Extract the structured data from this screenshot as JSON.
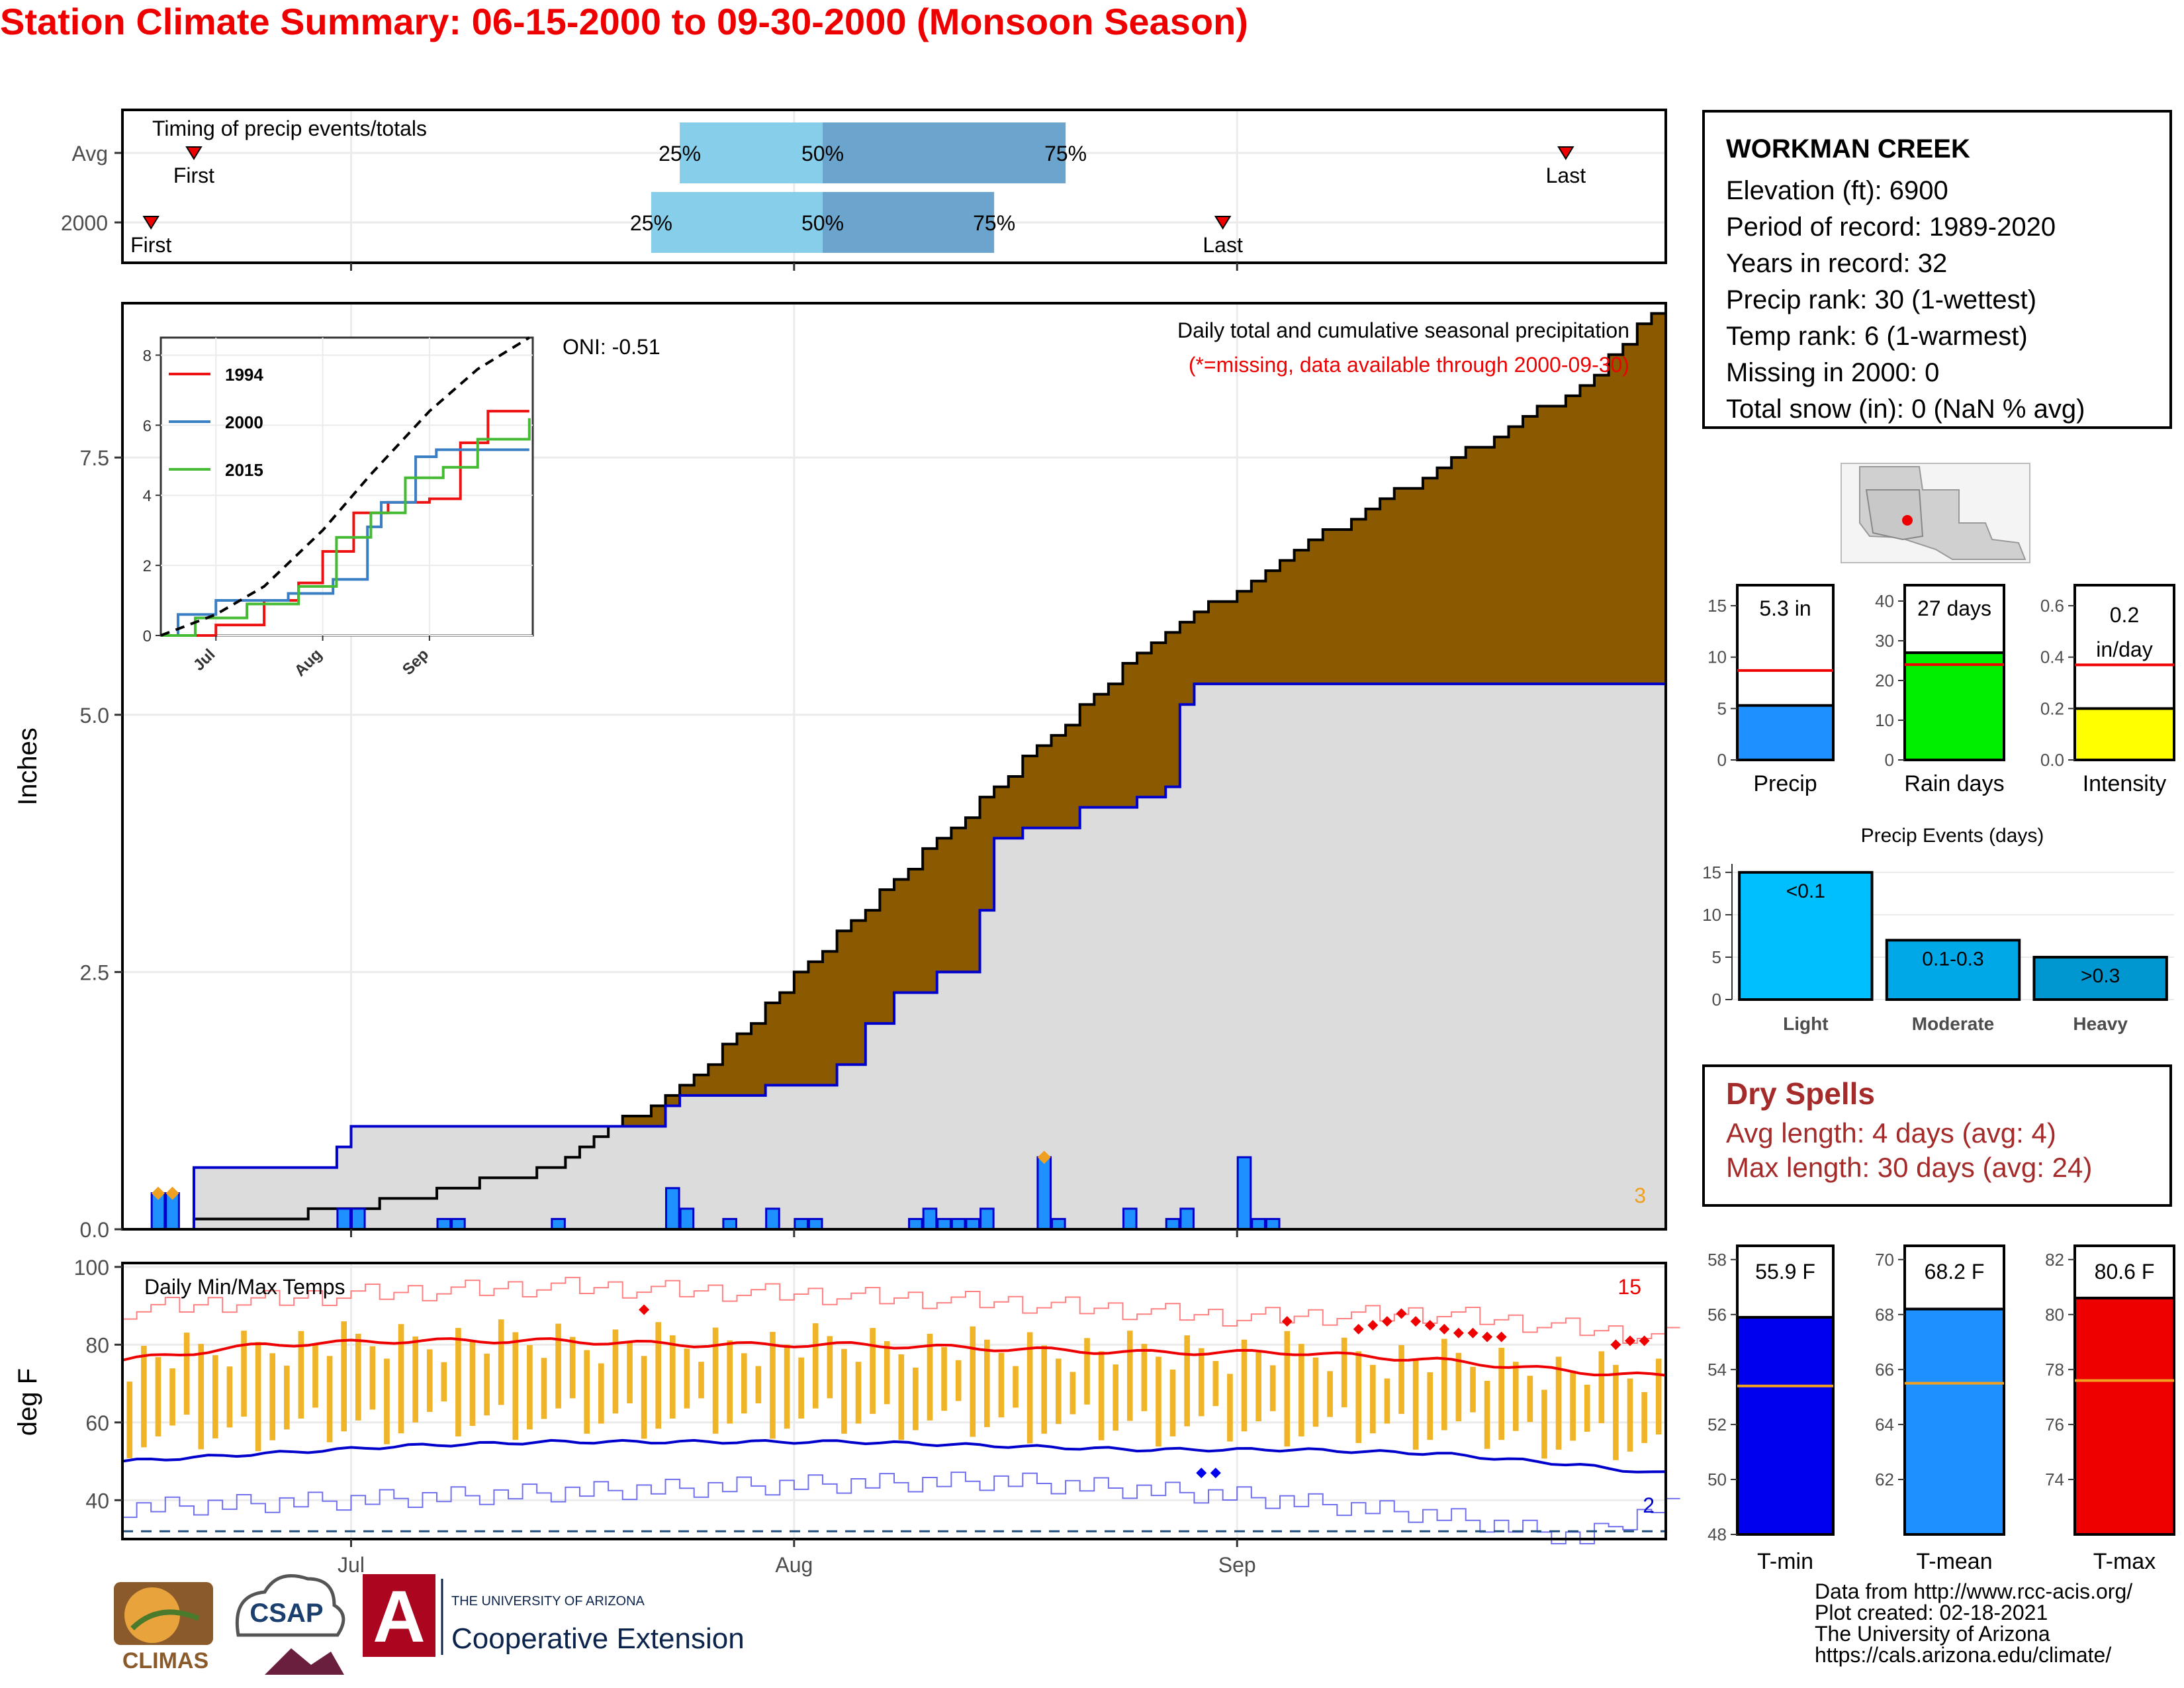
{
  "title": "Station Climate Summary: 06-15-2000 to 09-30-2000 (Monsoon Season)",
  "timing": {
    "label": "Timing of precip events/totals",
    "rows": [
      {
        "name": "Avg",
        "first": "First",
        "last": "Last",
        "p25": "25%",
        "p50": "50%",
        "p75": "75%"
      },
      {
        "name": "2000",
        "first": "First",
        "last": "Last",
        "p25": "25%",
        "p50": "50%",
        "p75": "75%"
      }
    ]
  },
  "station": {
    "name": "WORKMAN CREEK",
    "lines": [
      "Elevation (ft): 6900",
      "Period of record: 1989-2020",
      "Years in record: 32",
      "Precip rank: 30 (1-wettest)",
      "Temp rank: 6 (1-warmest)",
      "Missing in 2000: 0",
      "Total snow (in): 0 (NaN % avg)"
    ]
  },
  "precip_panel": {
    "ylabel": "Inches",
    "header": "Daily total and cumulative seasonal precipitation",
    "subheader": "(*=missing, data available through 2000-09-30)",
    "oni": "ONI: -0.51",
    "count_label": "3",
    "y_ticks": [
      "0.0",
      "2.5",
      "5.0",
      "7.5"
    ],
    "x_ticks": [
      "Jul",
      "Aug",
      "Sep"
    ],
    "inset": {
      "legend": [
        "1994",
        "2000",
        "2015"
      ],
      "y_ticks": [
        "0",
        "2",
        "4",
        "6",
        "8"
      ],
      "x_ticks": [
        "Jul",
        "Aug",
        "Sep"
      ]
    }
  },
  "temp_panel": {
    "ylabel": "deg F",
    "label": "Daily Min/Max Temps",
    "high_count": "15",
    "low_count": "2",
    "y_ticks": [
      "40",
      "60",
      "80",
      "100"
    ],
    "x_ticks": [
      "Jul",
      "Aug",
      "Sep"
    ]
  },
  "summary_bars": [
    {
      "label": "Precip",
      "value_text": "5.3 in",
      "ticks": [
        "0",
        "5",
        "10",
        "15"
      ]
    },
    {
      "label": "Rain days",
      "value_text": "27 days",
      "ticks": [
        "0",
        "10",
        "20",
        "30",
        "40"
      ]
    },
    {
      "label": "Intensity",
      "value_text": "0.2 in/day",
      "ticks": [
        "0.0",
        "0.2",
        "0.4",
        "0.6"
      ]
    }
  ],
  "events": {
    "title": "Precip Events (days)",
    "ticks": [
      "0",
      "5",
      "10",
      "15"
    ],
    "bars": [
      {
        "category": "Light",
        "text": "<0.1"
      },
      {
        "category": "Moderate",
        "text": "0.1-0.3"
      },
      {
        "category": "Heavy",
        "text": ">0.3"
      }
    ]
  },
  "dry_spells": {
    "title": "Dry Spells",
    "avg_length": "Avg length: 4 days (avg: 4)",
    "max_length": "Max length: 30 days (avg: 24)"
  },
  "temp_bars": [
    {
      "label": "T-min",
      "value_text": "55.9 F",
      "ticks": [
        "48",
        "50",
        "52",
        "54",
        "56",
        "58"
      ]
    },
    {
      "label": "T-mean",
      "value_text": "68.2 F",
      "ticks": [
        "62",
        "64",
        "66",
        "68",
        "70"
      ]
    },
    {
      "label": "T-max",
      "value_text": "80.6 F",
      "ticks": [
        "74",
        "76",
        "78",
        "80",
        "82"
      ]
    }
  ],
  "credits": {
    "text": "Data from http://www.rcc-acis.org/\nPlot created: 02-18-2021\nThe University of Arizona\nhttps://cals.arizona.edu/climate/"
  },
  "logos": {
    "climas": "CLIMAS",
    "csap": "CSAP",
    "ua_line1": "THE UNIVERSITY OF ARIZONA",
    "ua_line2": "Cooperative Extension"
  },
  "colors": {
    "title": "#ee0000",
    "observed_area": "#dcdcdc",
    "deficit_area": "#8b5a00",
    "surplus_area": "#008000",
    "daily_bar": "#1e90ff",
    "p_early": "#87ceeb",
    "p_late": "#6ba4cc",
    "temp_bar": "#f0b429",
    "tmax_line": "#ee0000",
    "tmin_line": "#0000cc",
    "rain_days_bar": "#00ee00",
    "intensity_bar": "#ffff00",
    "tmin_bar": "#0000ee",
    "tmean_bar": "#1e90ff",
    "tmax_bar": "#ee0000",
    "dry_spells": "#a52a2a"
  },
  "chart_data": [
    {
      "type": "bar",
      "name": "timing",
      "x_unit": "date",
      "xlim": [
        "2000-06-15",
        "2000-09-30"
      ],
      "series": [
        {
          "name": "Avg",
          "first": "2000-06-20",
          "p25": "2000-07-24",
          "p50": "2000-08-03",
          "p75": "2000-08-20",
          "last": "2000-09-24"
        },
        {
          "name": "2000",
          "first": "2000-06-17",
          "p25": "2000-07-22",
          "p50": "2000-08-03",
          "p75": "2000-08-15",
          "last": "2000-08-31"
        }
      ]
    },
    {
      "type": "area",
      "name": "precip",
      "x_unit": "date",
      "xlim": [
        "2000-06-15",
        "2000-09-30"
      ],
      "ylim": [
        0,
        9.0
      ],
      "avg_cumulative": [
        [
          "2000-06-15",
          0.0
        ],
        [
          "2000-06-25",
          0.1
        ],
        [
          "2000-07-05",
          0.3
        ],
        [
          "2000-07-15",
          0.6
        ],
        [
          "2000-07-25",
          1.5
        ],
        [
          "2000-08-05",
          3.0
        ],
        [
          "2000-08-15",
          4.3
        ],
        [
          "2000-08-25",
          5.6
        ],
        [
          "2000-09-05",
          6.6
        ],
        [
          "2000-09-15",
          7.4
        ],
        [
          "2000-09-25",
          8.2
        ],
        [
          "2000-09-30",
          8.9
        ]
      ],
      "obs_cumulative": [
        [
          "2000-06-15",
          0.0
        ],
        [
          "2000-06-19",
          0.0
        ],
        [
          "2000-06-20",
          0.6
        ],
        [
          "2000-06-29",
          0.6
        ],
        [
          "2000-06-30",
          0.8
        ],
        [
          "2000-07-01",
          1.0
        ],
        [
          "2000-07-22",
          1.0
        ],
        [
          "2000-07-23",
          1.2
        ],
        [
          "2000-07-24",
          1.3
        ],
        [
          "2000-07-29",
          1.3
        ],
        [
          "2000-07-30",
          1.4
        ],
        [
          "2000-08-03",
          1.4
        ],
        [
          "2000-08-04",
          1.6
        ],
        [
          "2000-08-06",
          2.0
        ],
        [
          "2000-08-08",
          2.3
        ],
        [
          "2000-08-11",
          2.5
        ],
        [
          "2000-08-14",
          3.1
        ],
        [
          "2000-08-15",
          3.8
        ],
        [
          "2000-08-17",
          3.9
        ],
        [
          "2000-08-21",
          4.1
        ],
        [
          "2000-08-25",
          4.2
        ],
        [
          "2000-08-27",
          4.3
        ],
        [
          "2000-08-28",
          5.1
        ],
        [
          "2000-08-29",
          5.3
        ],
        [
          "2000-09-30",
          5.3
        ]
      ],
      "daily": [
        [
          "2000-06-17",
          0.35
        ],
        [
          "2000-06-18",
          0.35
        ],
        [
          "2000-06-30",
          0.2
        ],
        [
          "2000-07-01",
          0.2
        ],
        [
          "2000-07-07",
          0.1
        ],
        [
          "2000-07-08",
          0.1
        ],
        [
          "2000-07-15",
          0.1
        ],
        [
          "2000-07-23",
          0.4
        ],
        [
          "2000-07-24",
          0.2
        ],
        [
          "2000-07-27",
          0.1
        ],
        [
          "2000-07-30",
          0.2
        ],
        [
          "2000-08-01",
          0.1
        ],
        [
          "2000-08-02",
          0.1
        ],
        [
          "2000-08-09",
          0.1
        ],
        [
          "2000-08-10",
          0.2
        ],
        [
          "2000-08-11",
          0.1
        ],
        [
          "2000-08-12",
          0.1
        ],
        [
          "2000-08-13",
          0.1
        ],
        [
          "2000-08-14",
          0.2
        ],
        [
          "2000-08-18",
          0.7
        ],
        [
          "2000-08-19",
          0.1
        ],
        [
          "2000-08-24",
          0.2
        ],
        [
          "2000-08-27",
          0.1
        ],
        [
          "2000-08-28",
          0.2
        ],
        [
          "2000-09-01",
          0.7
        ],
        [
          "2000-09-02",
          0.1
        ],
        [
          "2000-09-03",
          0.1
        ]
      ]
    },
    {
      "type": "line",
      "name": "inset cumulative precip",
      "x_unit": "date",
      "ylim": [
        0,
        8.5
      ],
      "series": [
        {
          "name": "1994",
          "values": [
            [
              "2000-06-15",
              0
            ],
            [
              "2000-07-01",
              0.3
            ],
            [
              "2000-07-15",
              1.0
            ],
            [
              "2000-07-25",
              1.5
            ],
            [
              "2000-08-01",
              2.4
            ],
            [
              "2000-08-10",
              3.5
            ],
            [
              "2000-08-20",
              3.8
            ],
            [
              "2000-09-01",
              3.9
            ],
            [
              "2000-09-10",
              5.5
            ],
            [
              "2000-09-18",
              6.4
            ],
            [
              "2000-09-30",
              6.4
            ]
          ]
        },
        {
          "name": "2000",
          "values": [
            [
              "2000-06-15",
              0
            ],
            [
              "2000-06-20",
              0.6
            ],
            [
              "2000-07-01",
              1.0
            ],
            [
              "2000-07-22",
              1.2
            ],
            [
              "2000-08-04",
              1.6
            ],
            [
              "2000-08-14",
              3.1
            ],
            [
              "2000-08-18",
              3.8
            ],
            [
              "2000-08-28",
              5.1
            ],
            [
              "2000-09-03",
              5.3
            ],
            [
              "2000-09-30",
              5.3
            ]
          ]
        },
        {
          "name": "2015",
          "values": [
            [
              "2000-06-15",
              0
            ],
            [
              "2000-06-25",
              0.5
            ],
            [
              "2000-07-10",
              0.9
            ],
            [
              "2000-07-25",
              1.4
            ],
            [
              "2000-08-05",
              2.8
            ],
            [
              "2000-08-15",
              3.5
            ],
            [
              "2000-08-25",
              4.5
            ],
            [
              "2000-09-05",
              4.8
            ],
            [
              "2000-09-15",
              5.6
            ],
            [
              "2000-09-30",
              6.2
            ]
          ]
        },
        {
          "name": "average",
          "values": [
            [
              "2000-06-15",
              0
            ],
            [
              "2000-07-01",
              0.6
            ],
            [
              "2000-07-15",
              1.4
            ],
            [
              "2000-08-01",
              3.0
            ],
            [
              "2000-08-15",
              4.6
            ],
            [
              "2000-09-01",
              6.4
            ],
            [
              "2000-09-15",
              7.6
            ],
            [
              "2000-09-30",
              8.5
            ]
          ]
        }
      ]
    },
    {
      "type": "bar",
      "name": "daily temperatures",
      "x_unit": "date",
      "ylim": [
        30,
        101
      ],
      "tmax_normal": [
        [
          "2000-06-15",
          76
        ],
        [
          "2000-06-25",
          80
        ],
        [
          "2000-07-05",
          81
        ],
        [
          "2000-07-15",
          81
        ],
        [
          "2000-07-25",
          80
        ],
        [
          "2000-08-05",
          80
        ],
        [
          "2000-08-15",
          79
        ],
        [
          "2000-08-25",
          78
        ],
        [
          "2000-09-05",
          78
        ],
        [
          "2000-09-15",
          76
        ],
        [
          "2000-09-25",
          73
        ],
        [
          "2000-09-30",
          72
        ]
      ],
      "tmin_normal": [
        [
          "2000-06-15",
          50
        ],
        [
          "2000-06-25",
          52
        ],
        [
          "2000-07-05",
          54
        ],
        [
          "2000-07-15",
          55
        ],
        [
          "2000-07-25",
          55
        ],
        [
          "2000-08-05",
          55
        ],
        [
          "2000-08-15",
          54
        ],
        [
          "2000-08-25",
          53
        ],
        [
          "2000-09-05",
          53
        ],
        [
          "2000-09-15",
          52
        ],
        [
          "2000-09-25",
          49
        ],
        [
          "2000-09-30",
          47
        ]
      ],
      "tmax_record": [
        [
          "2000-06-15",
          89
        ],
        [
          "2000-07-01",
          93
        ],
        [
          "2000-07-15",
          95
        ],
        [
          "2000-08-01",
          93
        ],
        [
          "2000-08-15",
          91
        ],
        [
          "2000-09-01",
          87
        ],
        [
          "2000-09-15",
          88
        ],
        [
          "2000-09-30",
          82
        ]
      ],
      "tmin_record": [
        [
          "2000-06-15",
          38
        ],
        [
          "2000-07-01",
          40
        ],
        [
          "2000-07-15",
          42
        ],
        [
          "2000-08-01",
          44
        ],
        [
          "2000-08-15",
          45
        ],
        [
          "2000-09-01",
          41
        ],
        [
          "2000-09-15",
          36
        ],
        [
          "2000-09-25",
          30
        ],
        [
          "2000-09-30",
          38
        ]
      ],
      "freezing_line": 32
    },
    {
      "type": "bar",
      "name": "seasonal totals",
      "categories": [
        "Precip",
        "Rain days",
        "Intensity"
      ],
      "values": [
        5.3,
        27,
        0.2
      ],
      "averages": [
        8.7,
        24,
        0.37
      ],
      "ylims": [
        [
          0,
          17
        ],
        [
          0,
          44
        ],
        [
          0,
          0.68
        ]
      ]
    },
    {
      "type": "bar",
      "name": "precip events",
      "categories": [
        "Light",
        "Moderate",
        "Heavy"
      ],
      "values": [
        15,
        7,
        5
      ],
      "ylim": [
        0,
        16
      ]
    },
    {
      "type": "bar",
      "name": "seasonal temperatures",
      "categories": [
        "T-min",
        "T-mean",
        "T-max"
      ],
      "values": [
        55.9,
        68.2,
        80.6
      ],
      "averages": [
        53.4,
        65.5,
        77.6
      ],
      "ylims": [
        [
          48,
          58.5
        ],
        [
          60,
          70.5
        ],
        [
          72,
          82.5
        ]
      ]
    }
  ]
}
